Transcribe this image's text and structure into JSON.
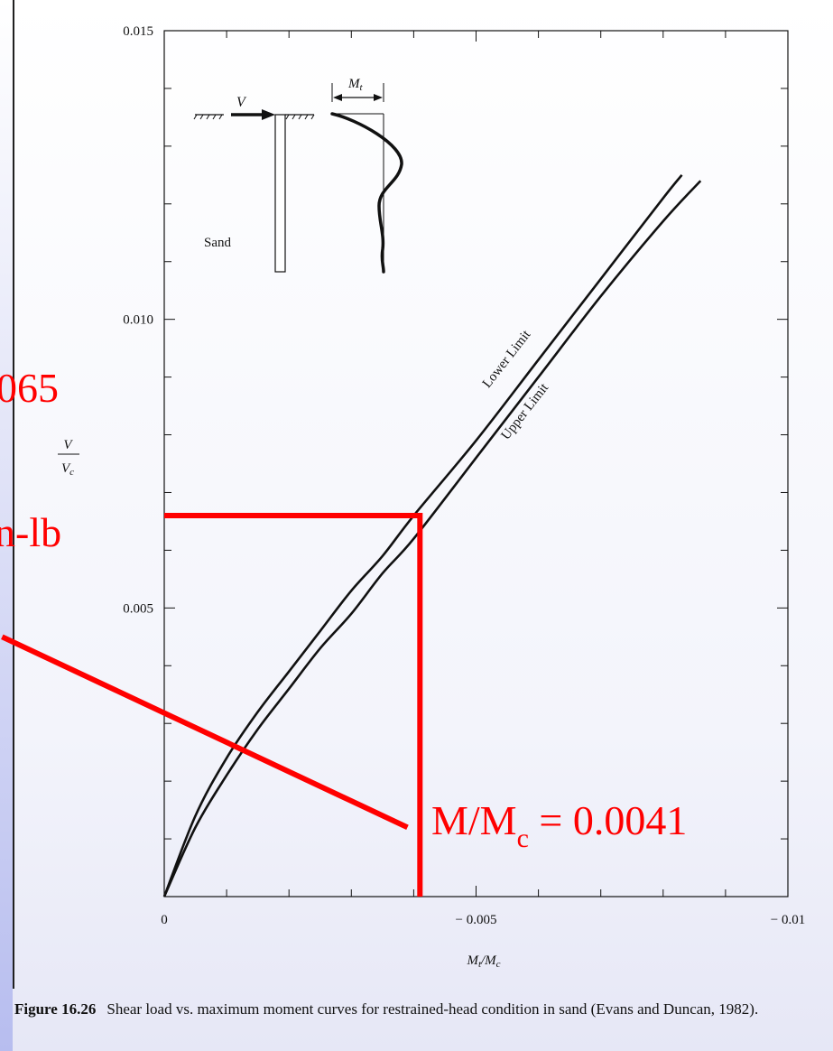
{
  "chart_data": {
    "type": "line",
    "xlabel": "Mt/Mc",
    "ylabel": "V/Vc",
    "xlim": [
      0,
      -0.01
    ],
    "ylim": [
      0,
      0.015
    ],
    "x_ticks": [
      0,
      -0.005,
      -0.01
    ],
    "x_tick_labels": [
      "0",
      "− 0.005",
      "− 0.01"
    ],
    "y_ticks": [
      0.005,
      0.01,
      0.015
    ],
    "y_tick_labels": [
      "0.005",
      "0.010",
      "0.015"
    ],
    "series": [
      {
        "name": "Lower Limit",
        "x": [
          0,
          -0.0005,
          -0.001,
          -0.0015,
          -0.002,
          -0.0025,
          -0.003,
          -0.0035,
          -0.004,
          -0.005,
          -0.006,
          -0.007,
          -0.008,
          -0.0083
        ],
        "y": [
          0,
          0.0014,
          0.0024,
          0.0032,
          0.0039,
          0.0046,
          0.0053,
          0.0059,
          0.0066,
          0.0079,
          0.0093,
          0.0107,
          0.0121,
          0.0125
        ]
      },
      {
        "name": "Upper Limit",
        "x": [
          0,
          -0.0005,
          -0.001,
          -0.0015,
          -0.002,
          -0.0025,
          -0.003,
          -0.0035,
          -0.004,
          -0.005,
          -0.006,
          -0.007,
          -0.008,
          -0.0086
        ],
        "y": [
          0,
          0.0012,
          0.0021,
          0.0029,
          0.0036,
          0.0043,
          0.0049,
          0.0056,
          0.0062,
          0.0076,
          0.009,
          0.0104,
          0.0117,
          0.0124
        ]
      }
    ],
    "annotations": {
      "red_guide_point": {
        "x": -0.0041,
        "y": 0.0066
      },
      "red_pointer_to": {
        "x": -0.0039,
        "y": 0.0012
      },
      "red_pointer_from": {
        "x": 0.0026,
        "y": 0.0045
      }
    },
    "inset": {
      "load_label": "V",
      "moment_label": "Mt",
      "soil_label": "Sand"
    }
  },
  "overlay": {
    "red_left_top": "065",
    "red_left_mid": "n-lb",
    "red_result_prefix": "M/M",
    "red_result_sub": "c",
    "red_result_suffix": " = 0.0041"
  },
  "caption": {
    "figure_number": "Figure 16.26",
    "text": "Shear load vs. maximum moment curves for restrained-head condition in sand (Evans and Duncan, 1982)."
  },
  "colors": {
    "annotation": "#ff0000",
    "ink": "#111111"
  }
}
